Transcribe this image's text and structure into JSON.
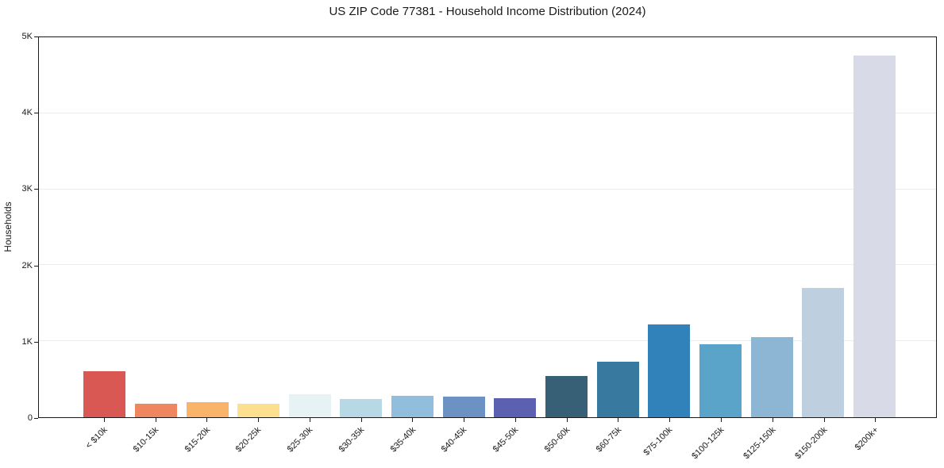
{
  "chart_data": {
    "type": "bar",
    "title": "US ZIP Code 77381 - Household Income Distribution (2024)",
    "xlabel": "",
    "ylabel": "Households",
    "ylim": [
      0,
      5000
    ],
    "grid": "horizontal",
    "grid_values": [
      1000,
      2000,
      3000,
      4000
    ],
    "legend_position": "none",
    "yticks": [
      {
        "value": 0,
        "label": "0"
      },
      {
        "value": 1000,
        "label": "1K"
      },
      {
        "value": 2000,
        "label": "2K"
      },
      {
        "value": 3000,
        "label": "3K"
      },
      {
        "value": 4000,
        "label": "4K"
      },
      {
        "value": 5000,
        "label": "5K"
      }
    ],
    "categories": [
      "< $10k",
      "$10-15k",
      "$15-20k",
      "$20-25k",
      "$25-30k",
      "$30-35k",
      "$35-40k",
      "$40-45k",
      "$45-50k",
      "$50-60k",
      "$60-75k",
      "$75-100k",
      "$100-125k",
      "$125-150k",
      "$150-200k",
      "$200k+"
    ],
    "values": [
      610,
      180,
      200,
      175,
      305,
      240,
      285,
      270,
      250,
      545,
      730,
      1225,
      965,
      1050,
      1705,
      4760
    ],
    "bar_colors": [
      "#d95853",
      "#ef8660",
      "#f9b469",
      "#fcdf8f",
      "#e7f2f5",
      "#b7d9e6",
      "#91bedd",
      "#6c92c4",
      "#5c60b0",
      "#375f76",
      "#38799f",
      "#3182ba",
      "#5ba4c9",
      "#8db5d4",
      "#becfe0",
      "#d9dae7"
    ],
    "colors": {
      "background": "#ffffff",
      "spine": "#1a1a1a",
      "grid": "#ececec",
      "text": "#1a1a1a"
    }
  }
}
